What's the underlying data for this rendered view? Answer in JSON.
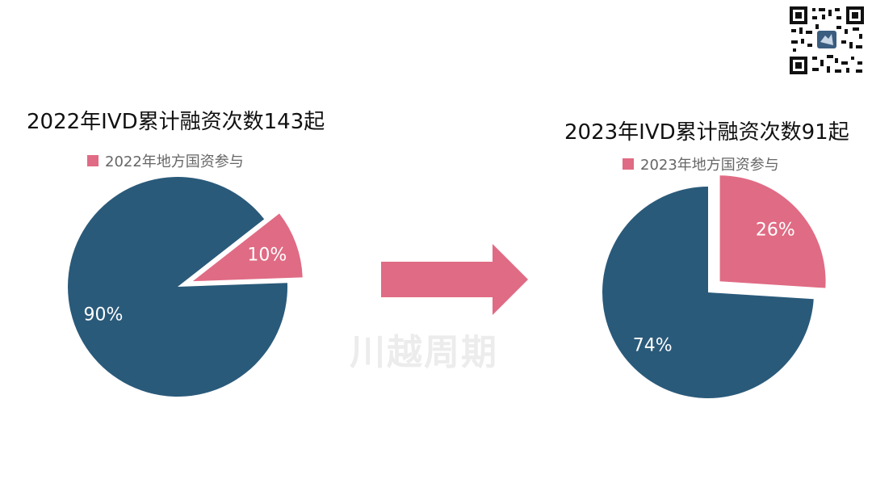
{
  "watermark": "川越周期",
  "colors": {
    "main": "#2a5a7a",
    "highlight": "#e06b84"
  },
  "chart_data": [
    {
      "type": "pie",
      "title": "2022年IVD累计融资次数143起",
      "legend": [
        "2022年地方国资参与"
      ],
      "legend_position": "top",
      "slices": [
        {
          "label": "2022年地方国资参与",
          "value": 10,
          "display": "10%",
          "exploded": true,
          "color": "#e06b84"
        },
        {
          "label": "",
          "value": 90,
          "display": "90%",
          "exploded": false,
          "color": "#2a5a7a"
        }
      ]
    },
    {
      "type": "pie",
      "title": "2023年IVD累计融资次数91起",
      "legend": [
        "2023年地方国资参与"
      ],
      "legend_position": "top",
      "slices": [
        {
          "label": "2023年地方国资参与",
          "value": 26,
          "display": "26%",
          "exploded": true,
          "color": "#e06b84"
        },
        {
          "label": "",
          "value": 74,
          "display": "74%",
          "exploded": false,
          "color": "#2a5a7a"
        }
      ]
    }
  ]
}
